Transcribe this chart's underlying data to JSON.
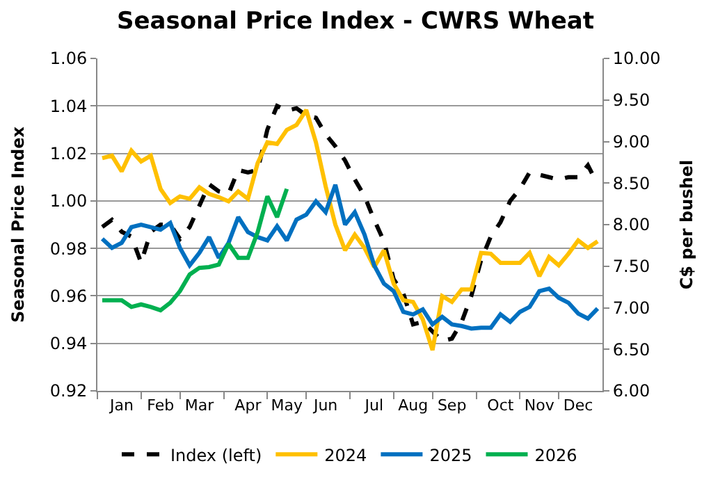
{
  "chart_data": {
    "type": "line",
    "title": "Seasonal Price Index - CWRS Wheat",
    "ylabel": "Seasonal Price Index",
    "y2label": "C$ per bushel",
    "categories": [
      null,
      null,
      "Jan",
      null,
      null,
      null,
      "Feb",
      null,
      null,
      null,
      "Mar",
      null,
      null,
      null,
      null,
      "Apr",
      null,
      null,
      null,
      "May",
      null,
      null,
      null,
      "Jun",
      null,
      null,
      null,
      null,
      "Jul",
      null,
      null,
      null,
      "Aug",
      null,
      null,
      null,
      "Sep",
      null,
      null,
      null,
      null,
      "Oct",
      null,
      null,
      null,
      "Nov",
      null,
      null,
      null,
      "Dec",
      null,
      null
    ],
    "ylim": [
      0.92,
      1.06
    ],
    "yticks": [
      {
        "value": 0.92,
        "label": "0.92"
      },
      {
        "value": 0.94,
        "label": "0.94"
      },
      {
        "value": 0.96,
        "label": "0.96"
      },
      {
        "value": 0.98,
        "label": "0.98"
      },
      {
        "value": 1.0,
        "label": "1.00"
      },
      {
        "value": 1.02,
        "label": "1.02"
      },
      {
        "value": 1.04,
        "label": "1.04"
      },
      {
        "value": 1.06,
        "label": "1.06"
      }
    ],
    "y2lim": [
      6.0,
      10.0
    ],
    "y2ticks": [
      {
        "value": 6,
        "label": "6.00"
      },
      {
        "value": 6.5,
        "label": "6.50"
      },
      {
        "value": 7,
        "label": "7.00"
      },
      {
        "value": 7.5,
        "label": "7.50"
      },
      {
        "value": 8,
        "label": "8.00"
      },
      {
        "value": 8.5,
        "label": "8.50"
      },
      {
        "value": 9,
        "label": "9.00"
      },
      {
        "value": 9.5,
        "label": "9.50"
      },
      {
        "value": 10,
        "label": "10.00"
      }
    ],
    "grid": "y",
    "legend": "bottom",
    "marker": "none",
    "series": [
      {
        "name": "Index (left)",
        "color": "#000000",
        "line_style": "dashed",
        "values": [
          0.989,
          0.992,
          0.987,
          0.985,
          0.974,
          0.987,
          0.99,
          0.99,
          0.984,
          0.989,
          0.998,
          1.007,
          1.004,
          1.003,
          1.013,
          1.012,
          1.013,
          1.03,
          1.04,
          1.038,
          1.039,
          1.036,
          1.035,
          1.028,
          1.023,
          1.017,
          1.009,
          1.002,
          0.992,
          0.983,
          0.967,
          0.961,
          0.948,
          0.949,
          0.945,
          0.941,
          0.942,
          0.949,
          0.96,
          0.975,
          0.985,
          0.991,
          1.0,
          1.005,
          1.012,
          1.011,
          1.01,
          1.009,
          1.01,
          1.01,
          1.015,
          1.007
        ]
      },
      {
        "name": "2024",
        "color": "#ffc000",
        "axis": "y2",
        "line_style": "solid",
        "values": [
          8.8,
          8.83,
          8.64,
          8.89,
          8.76,
          8.83,
          8.43,
          8.26,
          8.34,
          8.31,
          8.45,
          8.37,
          8.33,
          8.28,
          8.4,
          8.31,
          8.74,
          8.99,
          8.97,
          9.14,
          9.2,
          9.38,
          8.99,
          8.46,
          8.0,
          7.69,
          7.88,
          7.72,
          7.49,
          7.69,
          7.29,
          7.09,
          7.07,
          6.86,
          6.49,
          7.14,
          7.07,
          7.22,
          7.22,
          7.66,
          7.65,
          7.54,
          7.54,
          7.54,
          7.66,
          7.38,
          7.61,
          7.51,
          7.65,
          7.81,
          7.72,
          7.8
        ]
      },
      {
        "name": "2025",
        "color": "#0070c0",
        "axis": "y2",
        "line_style": "solid",
        "values": [
          7.83,
          7.72,
          7.78,
          7.97,
          8.0,
          7.97,
          7.94,
          8.02,
          7.72,
          7.51,
          7.66,
          7.85,
          7.6,
          7.78,
          8.09,
          7.91,
          7.85,
          7.81,
          7.98,
          7.81,
          8.06,
          8.12,
          8.28,
          8.15,
          8.48,
          8.0,
          8.15,
          7.88,
          7.51,
          7.29,
          7.2,
          6.95,
          6.92,
          6.98,
          6.8,
          6.89,
          6.8,
          6.78,
          6.75,
          6.76,
          6.76,
          6.92,
          6.83,
          6.95,
          7.01,
          7.2,
          7.23,
          7.12,
          7.06,
          6.93,
          6.87,
          6.99
        ]
      },
      {
        "name": "2026",
        "color": "#00b050",
        "axis": "y2",
        "line_style": "solid",
        "values": [
          7.09,
          7.09,
          7.09,
          7.01,
          7.04,
          7.01,
          6.97,
          7.06,
          7.2,
          7.4,
          7.48,
          7.49,
          7.52,
          7.77,
          7.6,
          7.6,
          7.91,
          8.34,
          8.09,
          8.43,
          null,
          null,
          null,
          null,
          null,
          null,
          null,
          null,
          null,
          null,
          null,
          null,
          null,
          null,
          null,
          null,
          null,
          null,
          null,
          null,
          null,
          null,
          null,
          null,
          null,
          null,
          null,
          null,
          null,
          null,
          null,
          null
        ]
      }
    ]
  }
}
